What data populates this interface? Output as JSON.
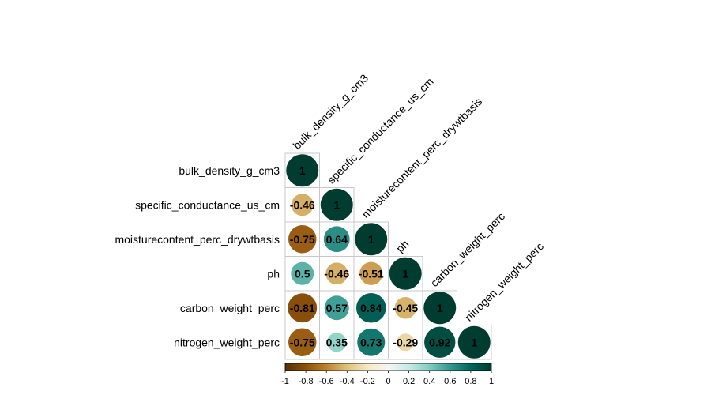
{
  "chart_data": {
    "type": "heatmap",
    "variables": [
      "bulk_density_g_cm3",
      "specific_conductance_us_cm",
      "moisturecontent_perc_drywtbasis",
      "ph",
      "carbon_weight_perc",
      "nitrogen_weight_perc"
    ],
    "matrix_lower": [
      [
        1
      ],
      [
        -0.46,
        1
      ],
      [
        -0.75,
        0.64,
        1
      ],
      [
        0.5,
        -0.46,
        -0.51,
        1
      ],
      [
        -0.81,
        0.57,
        0.84,
        -0.45,
        1
      ],
      [
        -0.75,
        0.35,
        0.73,
        -0.29,
        0.92,
        1
      ]
    ],
    "value_labels": [
      [
        "1"
      ],
      [
        "-0.46",
        "1"
      ],
      [
        "-0.75",
        "0.64",
        "1"
      ],
      [
        "0.5",
        "-0.46",
        "-0.51",
        "1"
      ],
      [
        "-0.81",
        "0.57",
        "0.84",
        "-0.45",
        "1"
      ],
      [
        "-0.75",
        "0.35",
        "0.73",
        "-0.29",
        "0.92",
        "1"
      ]
    ],
    "colorbar": {
      "range": [
        -1,
        1
      ],
      "ticks": [
        "-1",
        "-0.8",
        "-0.6",
        "-0.4",
        "-0.2",
        "0",
        "0.2",
        "0.4",
        "0.6",
        "0.8",
        "1"
      ]
    },
    "palette": [
      "#543005",
      "#8C510A",
      "#BF812D",
      "#DFC27D",
      "#F6E8C3",
      "#F5F5F5",
      "#C7EAE5",
      "#80CDC1",
      "#35978F",
      "#01665E",
      "#003C30"
    ],
    "title": "",
    "xlabel": "",
    "ylabel": ""
  }
}
